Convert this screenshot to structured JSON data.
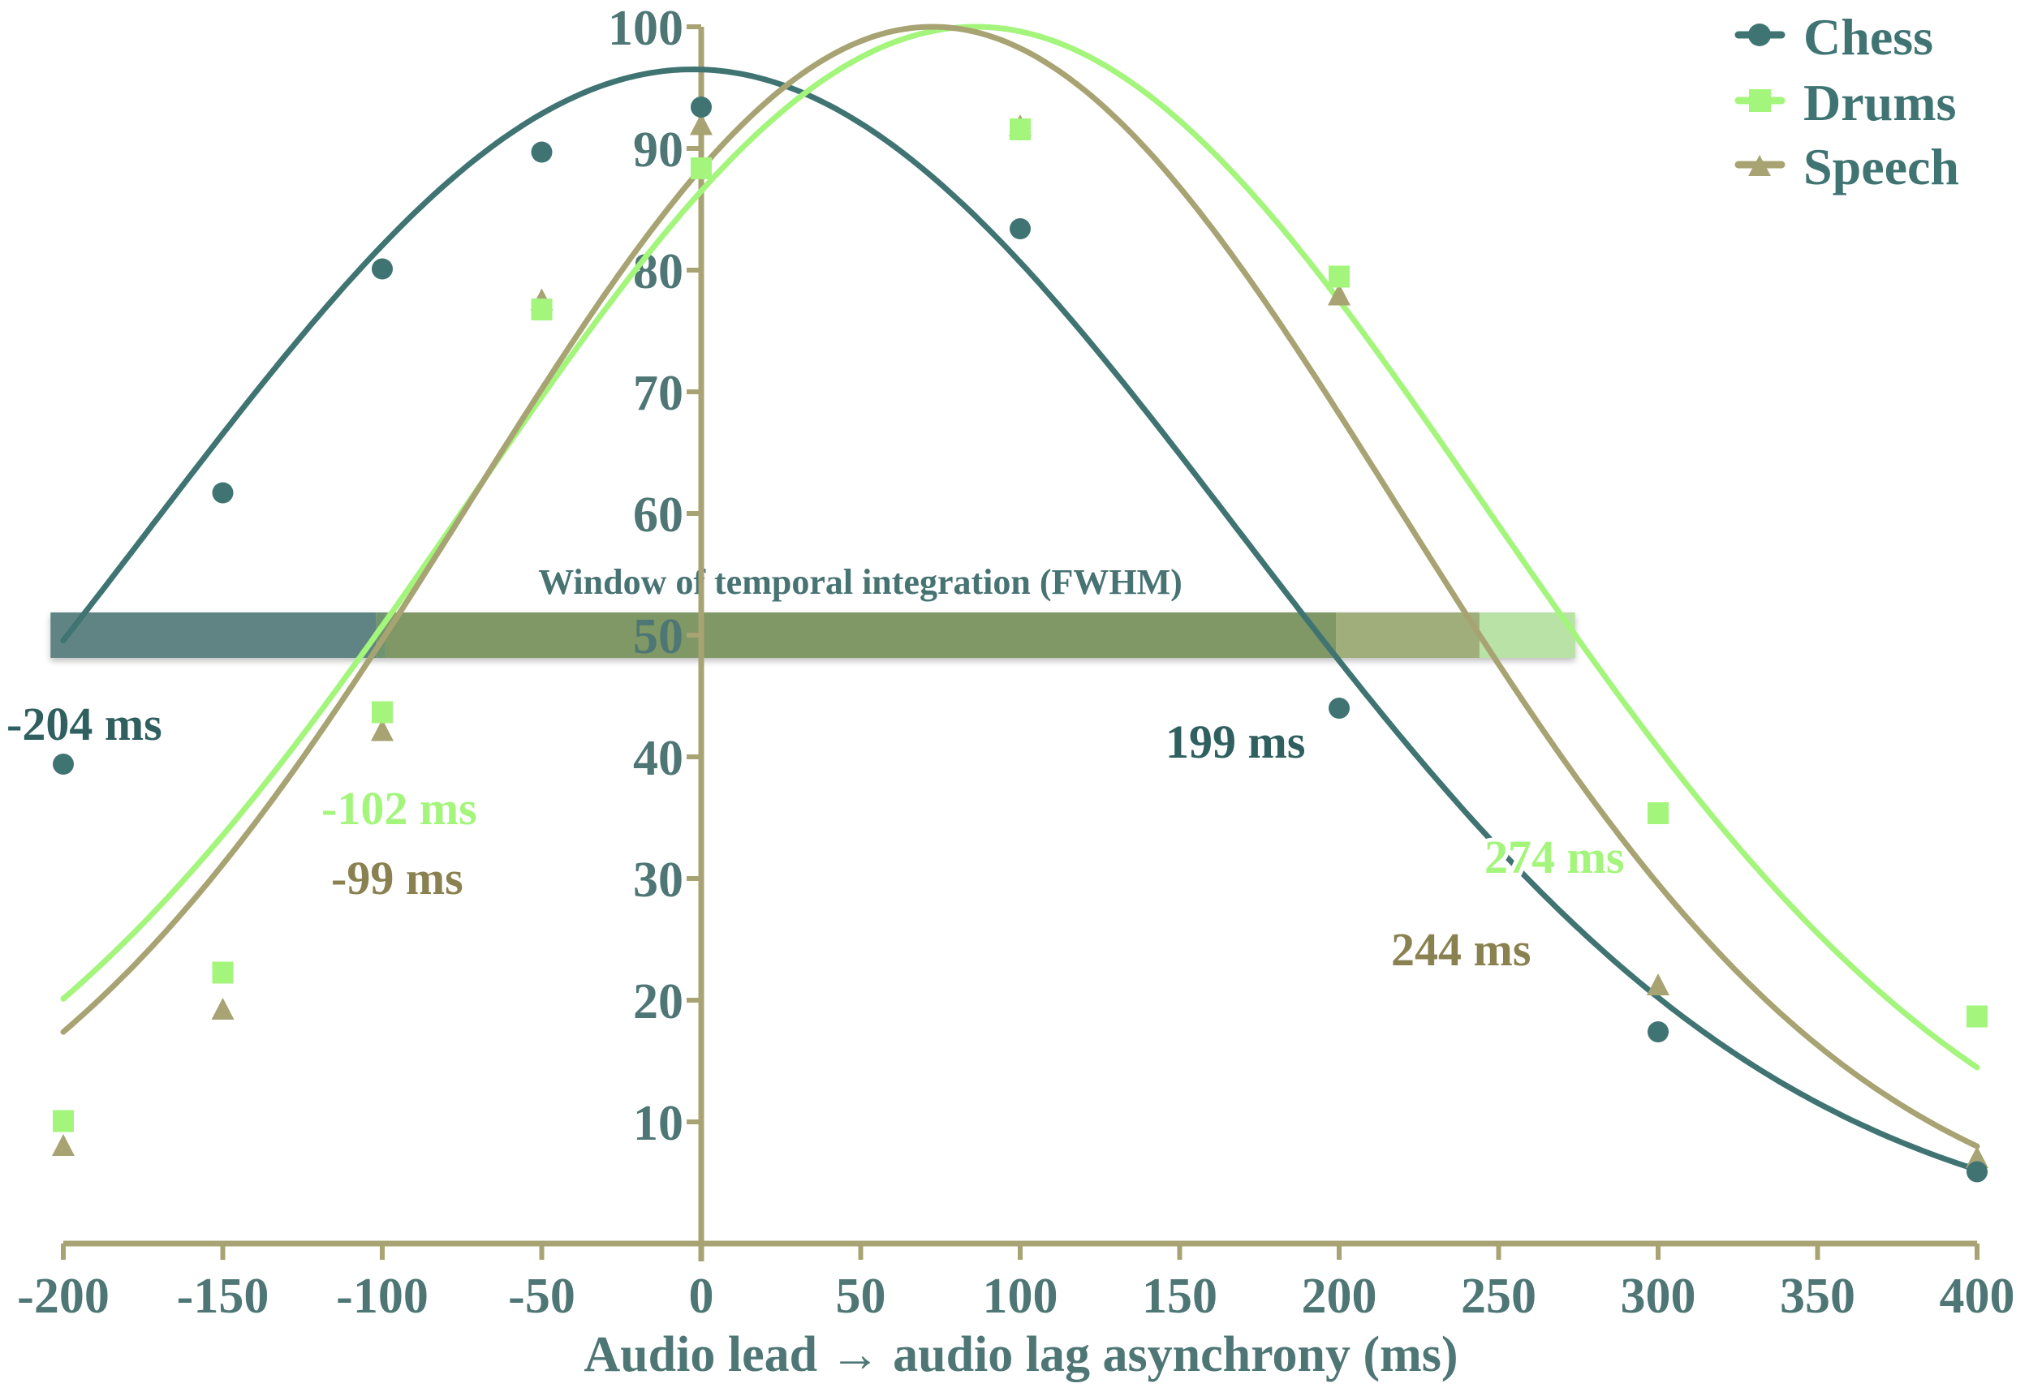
{
  "chart_data": {
    "type": "line",
    "title": "",
    "xlabel": "Audio lead → audio lag asynchrony (ms)",
    "ylabel": "",
    "xlim": [
      -200,
      400
    ],
    "ylim": [
      0,
      100
    ],
    "x_ticks": [
      -200,
      -150,
      -100,
      -50,
      0,
      50,
      100,
      150,
      200,
      250,
      300,
      350,
      400
    ],
    "y_ticks": [
      10,
      20,
      30,
      40,
      50,
      60,
      70,
      80,
      90,
      100
    ],
    "grid": false,
    "legend_position": "top-right",
    "x": [
      -200,
      -150,
      -100,
      -50,
      0,
      100,
      200,
      300,
      400
    ],
    "series": [
      {
        "name": "Chess",
        "marker": "circle",
        "color": "#3f7473",
        "values": [
          39.4,
          61.7,
          80.1,
          89.7,
          93.4,
          83.4,
          44.0,
          17.4,
          5.9
        ],
        "fit": {
          "type": "gaussian",
          "amplitude": 96.5,
          "mean": -2.5,
          "sigma": 171.1
        },
        "fwhm": {
          "left": -204,
          "right": 199,
          "left_label": "-204 ms",
          "right_label": "199 ms",
          "label_color": "#2f5f5f"
        }
      },
      {
        "name": "Drums",
        "marker": "square",
        "color": "#a3f57b",
        "values": [
          10.1,
          22.3,
          43.7,
          76.8,
          88.4,
          91.6,
          79.5,
          35.4,
          18.7
        ],
        "fit": {
          "type": "gaussian",
          "amplitude": 100,
          "mean": 86,
          "sigma": 159.7
        },
        "fwhm": {
          "left": -102,
          "right": 274,
          "left_label": "-102 ms",
          "right_label": "274 ms",
          "label_color": "#a3f57b"
        }
      },
      {
        "name": "Speech",
        "marker": "triangle",
        "color": "#a8a373",
        "values": [
          8.0,
          19.2,
          42.1,
          77.5,
          91.9,
          91.8,
          77.9,
          21.2,
          7.0
        ],
        "fit": {
          "type": "gaussian",
          "amplitude": 100,
          "mean": 72.5,
          "sigma": 145.7
        },
        "fwhm": {
          "left": -99,
          "right": 244,
          "left_label": "-99 ms",
          "right_label": "244 ms",
          "label_color": "#8a8150"
        }
      }
    ],
    "annotations": [
      {
        "text": "Window of temporal integration (FWHM)",
        "y": 50,
        "type": "horizontal-band"
      }
    ]
  },
  "legend": {
    "items": [
      {
        "label": "Chess",
        "icon": "circle-marker-icon",
        "color": "#3f7473"
      },
      {
        "label": "Drums",
        "icon": "square-marker-icon",
        "color": "#a3f57b"
      },
      {
        "label": "Speech",
        "icon": "triangle-marker-icon",
        "color": "#a8a373"
      }
    ]
  },
  "band": {
    "title": "Window of temporal integration (FWHM)",
    "segments": [
      {
        "from": -204,
        "to": -102,
        "color": "#5e8483"
      },
      {
        "from": -102,
        "to": -99,
        "color": "#6f9470"
      },
      {
        "from": -99,
        "to": 199,
        "color": "#7f9866"
      },
      {
        "from": 199,
        "to": 244,
        "color": "#9fae7a"
      },
      {
        "from": 244,
        "to": 274,
        "color": "#b9e3a6"
      }
    ]
  },
  "colors": {
    "axis": "#a8a373",
    "tick_text": "#4e7675",
    "title_text": "#477372"
  }
}
